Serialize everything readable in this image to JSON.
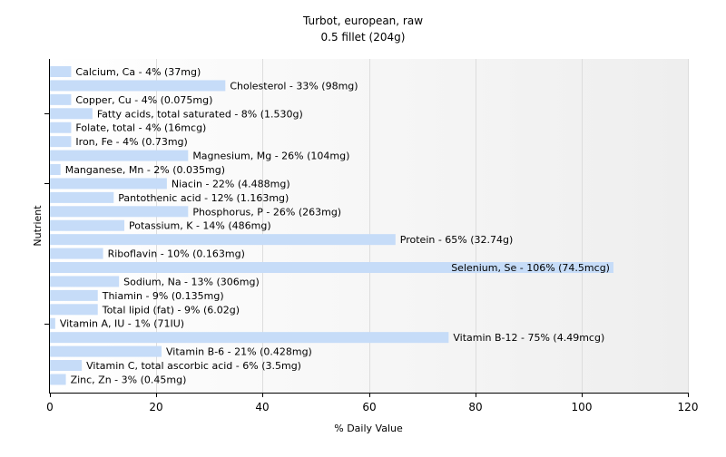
{
  "chart_data": {
    "type": "bar",
    "orientation": "horizontal",
    "title": "Turbot, european, raw",
    "subtitle": "0.5 fillet (204g)",
    "xlabel": "% Daily Value",
    "ylabel": "Nutrient",
    "xlim": [
      0,
      120
    ],
    "xticks": [
      0,
      20,
      40,
      60,
      80,
      100,
      120
    ],
    "grid": true,
    "bar_color": "#c6dcf8",
    "categories": [
      "Calcium, Ca",
      "Cholesterol",
      "Copper, Cu",
      "Fatty acids, total saturated",
      "Folate, total",
      "Iron, Fe",
      "Magnesium, Mg",
      "Manganese, Mn",
      "Niacin",
      "Pantothenic acid",
      "Phosphorus, P",
      "Potassium, K",
      "Protein",
      "Riboflavin",
      "Selenium, Se",
      "Sodium, Na",
      "Thiamin",
      "Total lipid (fat)",
      "Vitamin A, IU",
      "Vitamin B-12",
      "Vitamin B-6",
      "Vitamin C, total ascorbic acid",
      "Zinc, Zn"
    ],
    "values": [
      4,
      33,
      4,
      8,
      4,
      4,
      26,
      2,
      22,
      12,
      26,
      14,
      65,
      10,
      106,
      13,
      9,
      9,
      1,
      75,
      21,
      6,
      3
    ],
    "labels": [
      "Calcium, Ca - 4% (37mg)",
      "Cholesterol - 33% (98mg)",
      "Copper, Cu - 4% (0.075mg)",
      "Fatty acids, total saturated - 8% (1.530g)",
      "Folate, total - 4% (16mcg)",
      "Iron, Fe - 4% (0.73mg)",
      "Magnesium, Mg - 26% (104mg)",
      "Manganese, Mn - 2% (0.035mg)",
      "Niacin - 22% (4.488mg)",
      "Pantothenic acid - 12% (1.163mg)",
      "Phosphorus, P - 26% (263mg)",
      "Potassium, K - 14% (486mg)",
      "Protein - 65% (32.74g)",
      "Riboflavin - 10% (0.163mg)",
      "Selenium, Se - 106% (74.5mcg)",
      "Sodium, Na - 13% (306mg)",
      "Thiamin - 9% (0.135mg)",
      "Total lipid (fat) - 9% (6.02g)",
      "Vitamin A, IU - 1% (71IU)",
      "Vitamin B-12 - 75% (4.49mcg)",
      "Vitamin B-6 - 21% (0.428mg)",
      "Vitamin C, total ascorbic acid - 6% (3.5mg)",
      "Zinc, Zn - 3% (0.45mg)"
    ]
  }
}
